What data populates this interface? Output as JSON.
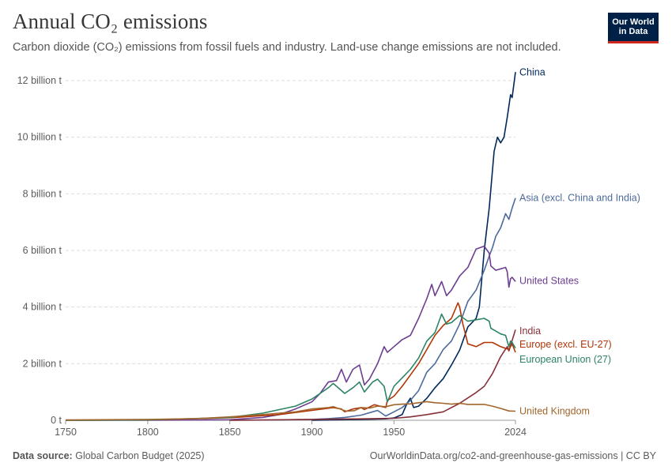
{
  "header": {
    "title": "Annual CO₂ emissions",
    "subtitle": "Carbon dioxide (CO₂) emissions from fossil fuels and industry. Land-use change emissions are not included."
  },
  "logo": {
    "line1": "Our World",
    "line2": "in Data",
    "bg_color": "#002147",
    "accent_color": "#ce261e"
  },
  "footer": {
    "source_label": "Data source:",
    "source_value": "Global Carbon Budget (2025)",
    "credit": "OurWorldinData.org/co2-and-greenhouse-gas-emissions | CC BY"
  },
  "chart_data": {
    "type": "line",
    "title": "Annual CO₂ emissions",
    "xlabel": "",
    "ylabel": "",
    "xlim": [
      1750,
      2024
    ],
    "ylim": [
      0,
      12.5
    ],
    "x_ticks": [
      1750,
      1800,
      1850,
      1900,
      1950,
      2024
    ],
    "y_ticks": [
      {
        "value": 0,
        "label": "0 t"
      },
      {
        "value": 2,
        "label": "2 billion t"
      },
      {
        "value": 4,
        "label": "4 billion t"
      },
      {
        "value": 6,
        "label": "6 billion t"
      },
      {
        "value": 8,
        "label": "8 billion t"
      },
      {
        "value": 10,
        "label": "10 billion t"
      },
      {
        "value": 12,
        "label": "12 billion t"
      }
    ],
    "grid": true,
    "series": [
      {
        "name": "China",
        "color": "#00295b",
        "x": [
          1900,
          1930,
          1945,
          1950,
          1955,
          1958,
          1960,
          1962,
          1965,
          1970,
          1975,
          1980,
          1985,
          1990,
          1995,
          2000,
          2002,
          2005,
          2008,
          2011,
          2013,
          2015,
          2017,
          2019,
          2021,
          2022,
          2024
        ],
        "y": [
          0.0,
          0.03,
          0.05,
          0.08,
          0.2,
          0.6,
          0.78,
          0.45,
          0.5,
          0.78,
          1.15,
          1.47,
          1.95,
          2.48,
          3.3,
          3.6,
          4.0,
          6.0,
          7.5,
          9.5,
          10.0,
          9.8,
          10.0,
          10.7,
          11.5,
          11.4,
          12.3
        ]
      },
      {
        "name": "Asia (excl. China and India)",
        "color": "#4c6a9c",
        "x": [
          1850,
          1880,
          1900,
          1910,
          1920,
          1930,
          1937,
          1940,
          1945,
          1950,
          1955,
          1960,
          1965,
          1970,
          1975,
          1980,
          1985,
          1990,
          1995,
          2000,
          2005,
          2008,
          2010,
          2012,
          2015,
          2018,
          2020,
          2022,
          2024
        ],
        "y": [
          0.0,
          0.01,
          0.03,
          0.06,
          0.1,
          0.18,
          0.3,
          0.35,
          0.15,
          0.3,
          0.45,
          0.7,
          1.05,
          1.7,
          2.0,
          2.5,
          2.8,
          3.4,
          4.2,
          4.6,
          5.3,
          5.8,
          6.1,
          6.5,
          6.8,
          7.3,
          7.1,
          7.5,
          7.85
        ]
      },
      {
        "name": "United States",
        "color": "#6d3e91",
        "x": [
          1750,
          1800,
          1850,
          1870,
          1880,
          1890,
          1900,
          1905,
          1910,
          1915,
          1918,
          1921,
          1925,
          1929,
          1932,
          1935,
          1940,
          1944,
          1946,
          1950,
          1955,
          1960,
          1965,
          1970,
          1973,
          1975,
          1979,
          1982,
          1985,
          1990,
          1995,
          2000,
          2005,
          2008,
          2009,
          2012,
          2015,
          2018,
          2019,
          2020,
          2021,
          2022,
          2024
        ],
        "y": [
          0.0,
          0.0,
          0.02,
          0.1,
          0.2,
          0.4,
          0.65,
          0.95,
          1.35,
          1.4,
          1.8,
          1.35,
          1.8,
          1.95,
          1.25,
          1.45,
          2.0,
          2.6,
          2.4,
          2.6,
          2.85,
          3.0,
          3.6,
          4.3,
          4.8,
          4.4,
          4.9,
          4.4,
          4.6,
          5.1,
          5.4,
          6.05,
          6.15,
          5.9,
          5.45,
          5.3,
          5.35,
          5.4,
          5.25,
          4.7,
          5.0,
          5.05,
          4.9
        ]
      },
      {
        "name": "India",
        "color": "#883039",
        "x": [
          1850,
          1900,
          1930,
          1950,
          1960,
          1970,
          1980,
          1990,
          2000,
          2005,
          2010,
          2015,
          2019,
          2020,
          2024
        ],
        "y": [
          0.0,
          0.03,
          0.05,
          0.07,
          0.12,
          0.2,
          0.3,
          0.6,
          0.98,
          1.2,
          1.65,
          2.25,
          2.6,
          2.45,
          3.2
        ]
      },
      {
        "name": "Europe (excl. EU-27)",
        "color": "#b13507",
        "x": [
          1750,
          1800,
          1850,
          1880,
          1900,
          1913,
          1918,
          1920,
          1925,
          1930,
          1932,
          1938,
          1945,
          1946,
          1950,
          1955,
          1960,
          1965,
          1970,
          1975,
          1980,
          1985,
          1989,
          1990,
          1992,
          1995,
          2000,
          2005,
          2010,
          2015,
          2020,
          2022,
          2024
        ],
        "y": [
          0.0,
          0.01,
          0.09,
          0.2,
          0.35,
          0.45,
          0.4,
          0.3,
          0.4,
          0.45,
          0.38,
          0.55,
          0.45,
          0.7,
          0.85,
          1.2,
          1.6,
          2.0,
          2.5,
          3.0,
          3.35,
          3.6,
          4.15,
          4.0,
          3.4,
          2.7,
          2.6,
          2.75,
          2.75,
          2.6,
          2.5,
          2.7,
          2.4
        ]
      },
      {
        "name": "European Union (27)",
        "color": "#2c8465",
        "x": [
          1750,
          1800,
          1850,
          1870,
          1890,
          1900,
          1905,
          1910,
          1913,
          1918,
          1920,
          1925,
          1929,
          1932,
          1937,
          1940,
          1944,
          1946,
          1950,
          1955,
          1960,
          1965,
          1970,
          1975,
          1979,
          1982,
          1985,
          1990,
          1995,
          2000,
          2005,
          2008,
          2009,
          2012,
          2015,
          2018,
          2020,
          2021,
          2022,
          2024
        ],
        "y": [
          0.0,
          0.01,
          0.1,
          0.25,
          0.5,
          0.75,
          0.95,
          1.15,
          1.3,
          1.05,
          0.95,
          1.15,
          1.35,
          1.0,
          1.35,
          1.45,
          1.2,
          0.65,
          1.2,
          1.5,
          1.8,
          2.2,
          2.8,
          3.1,
          3.75,
          3.4,
          3.45,
          3.7,
          3.5,
          3.55,
          3.6,
          3.5,
          3.25,
          3.15,
          3.05,
          3.0,
          2.6,
          2.8,
          2.75,
          2.55
        ]
      },
      {
        "name": "United Kingdom",
        "color": "#a2662c",
        "x": [
          1750,
          1800,
          1830,
          1850,
          1870,
          1880,
          1890,
          1900,
          1910,
          1913,
          1921,
          1926,
          1930,
          1935,
          1940,
          1945,
          1950,
          1955,
          1960,
          1965,
          1970,
          1975,
          1980,
          1985,
          1990,
          1995,
          2000,
          2005,
          2010,
          2015,
          2020,
          2024
        ],
        "y": [
          0.01,
          0.03,
          0.06,
          0.12,
          0.2,
          0.25,
          0.3,
          0.4,
          0.45,
          0.48,
          0.32,
          0.34,
          0.45,
          0.43,
          0.5,
          0.48,
          0.55,
          0.57,
          0.58,
          0.62,
          0.66,
          0.62,
          0.6,
          0.57,
          0.6,
          0.56,
          0.56,
          0.56,
          0.5,
          0.42,
          0.33,
          0.32
        ]
      }
    ]
  }
}
